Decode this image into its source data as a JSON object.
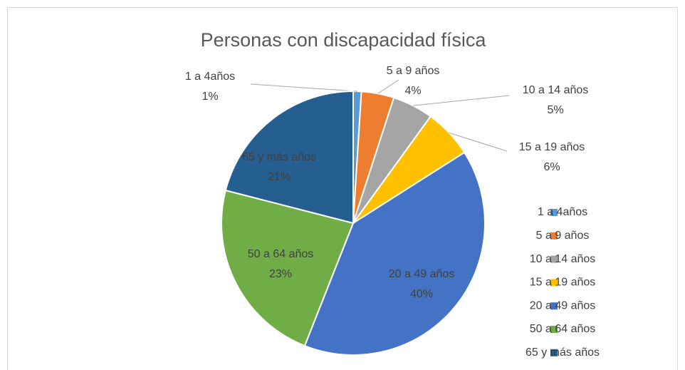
{
  "chart_data": {
    "type": "pie",
    "title": "Personas con discapacidad física",
    "categories": [
      "1 a 4años",
      "5 a 9 años",
      "10 a 14 años",
      "15 a 19 años",
      "20 a 49 años",
      "50 a 64 años",
      "65 y más años"
    ],
    "values": [
      1,
      4,
      5,
      6,
      40,
      23,
      21
    ],
    "value_labels": [
      "1%",
      "4%",
      "5%",
      "6%",
      "40%",
      "23%",
      "21%"
    ],
    "colors": [
      "#5b9bd5",
      "#ed7d31",
      "#a5a5a5",
      "#ffc000",
      "#4472c4",
      "#70ad47",
      "#255e91"
    ],
    "legend": "right"
  }
}
